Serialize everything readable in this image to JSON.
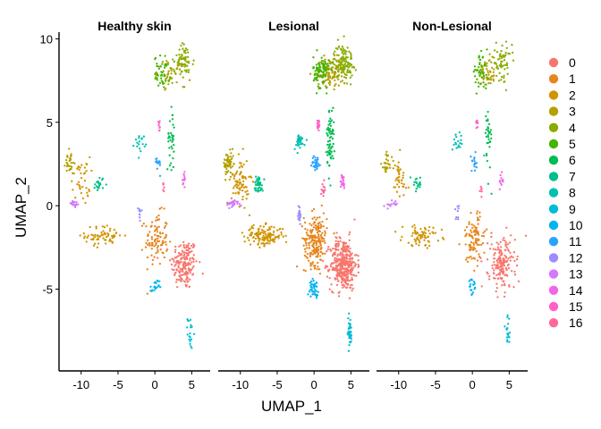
{
  "chart_data": {
    "type": "scatter",
    "xlabel": "UMAP_1",
    "ylabel": "UMAP_2",
    "xlim": [
      -13.0,
      7.5
    ],
    "ylim": [
      -9.9,
      10.4
    ],
    "x_ticks": [
      -10,
      -5,
      0,
      5
    ],
    "y_ticks": [
      -5,
      0,
      5,
      10
    ],
    "x_tick_labels": [
      "-10",
      "-5",
      "0",
      "5"
    ],
    "y_tick_labels": [
      "-5",
      "0",
      "5",
      "10"
    ],
    "grid": false,
    "legend_position": "right",
    "panels": [
      {
        "title": "Healthy skin",
        "density": 0.75
      },
      {
        "title": "Lesional",
        "density": 1.6
      },
      {
        "title": "Non-Lesional",
        "density": 0.75
      }
    ],
    "clusters": [
      {
        "label": "0",
        "color": "#F8766D"
      },
      {
        "label": "1",
        "color": "#E7851E"
      },
      {
        "label": "2",
        "color": "#D09400"
      },
      {
        "label": "3",
        "color": "#B2A100"
      },
      {
        "label": "4",
        "color": "#89AC00"
      },
      {
        "label": "5",
        "color": "#45B500"
      },
      {
        "label": "6",
        "color": "#00BC51"
      },
      {
        "label": "7",
        "color": "#00C087"
      },
      {
        "label": "8",
        "color": "#00C0B2"
      },
      {
        "label": "9",
        "color": "#00BCD6"
      },
      {
        "label": "10",
        "color": "#00B3F2"
      },
      {
        "label": "11",
        "color": "#29A3FF"
      },
      {
        "label": "12",
        "color": "#9C8DFF"
      },
      {
        "label": "13",
        "color": "#D277FF"
      },
      {
        "label": "14",
        "color": "#F166E8"
      },
      {
        "label": "15",
        "color": "#FF61C7"
      },
      {
        "label": "16",
        "color": "#FF689E"
      }
    ],
    "cluster_regions": [
      {
        "cluster": "0",
        "center": [
          4.0,
          -3.5
        ],
        "spread": [
          1.5,
          1.3
        ],
        "weight": 230
      },
      {
        "cluster": "1",
        "center": [
          0.2,
          -2.0
        ],
        "spread": [
          1.3,
          1.3
        ],
        "weight": 130
      },
      {
        "cluster": "2",
        "center": [
          -6.8,
          -1.8
        ],
        "spread": [
          2.2,
          0.5
        ],
        "weight": 90
      },
      {
        "cluster": "2",
        "center": [
          -10.0,
          1.5
        ],
        "spread": [
          1.0,
          1.2
        ],
        "weight": 50
      },
      {
        "cluster": "3",
        "center": [
          -11.6,
          2.5
        ],
        "spread": [
          0.6,
          0.6
        ],
        "weight": 40
      },
      {
        "cluster": "3",
        "center": [
          2.2,
          8.0
        ],
        "spread": [
          1.5,
          0.7
        ],
        "weight": 70
      },
      {
        "cluster": "4",
        "center": [
          4.0,
          8.6
        ],
        "spread": [
          1.1,
          0.9
        ],
        "weight": 80
      },
      {
        "cluster": "5",
        "center": [
          1.0,
          8.0
        ],
        "spread": [
          0.9,
          0.8
        ],
        "weight": 60
      },
      {
        "cluster": "6",
        "center": [
          2.2,
          4.0
        ],
        "spread": [
          0.4,
          1.6
        ],
        "weight": 45
      },
      {
        "cluster": "7",
        "center": [
          -7.5,
          1.3
        ],
        "spread": [
          0.5,
          0.4
        ],
        "weight": 28
      },
      {
        "cluster": "8",
        "center": [
          -2.0,
          3.8
        ],
        "spread": [
          0.6,
          0.4
        ],
        "weight": 22
      },
      {
        "cluster": "9",
        "center": [
          4.8,
          -7.6
        ],
        "spread": [
          0.3,
          0.8
        ],
        "weight": 25
      },
      {
        "cluster": "10",
        "center": [
          0.0,
          -4.9
        ],
        "spread": [
          0.5,
          0.4
        ],
        "weight": 25
      },
      {
        "cluster": "11",
        "center": [
          0.3,
          2.5
        ],
        "spread": [
          0.5,
          0.4
        ],
        "weight": 20
      },
      {
        "cluster": "12",
        "center": [
          -2.0,
          -0.5
        ],
        "spread": [
          0.2,
          0.5
        ],
        "weight": 12
      },
      {
        "cluster": "13",
        "center": [
          -11.0,
          0.1
        ],
        "spread": [
          0.7,
          0.2
        ],
        "weight": 20
      },
      {
        "cluster": "14",
        "center": [
          3.9,
          1.5
        ],
        "spread": [
          0.3,
          0.4
        ],
        "weight": 14
      },
      {
        "cluster": "15",
        "center": [
          0.6,
          4.9
        ],
        "spread": [
          0.15,
          0.4
        ],
        "weight": 10
      },
      {
        "cluster": "16",
        "center": [
          1.2,
          1.0
        ],
        "spread": [
          0.2,
          0.3
        ],
        "weight": 8
      }
    ]
  }
}
